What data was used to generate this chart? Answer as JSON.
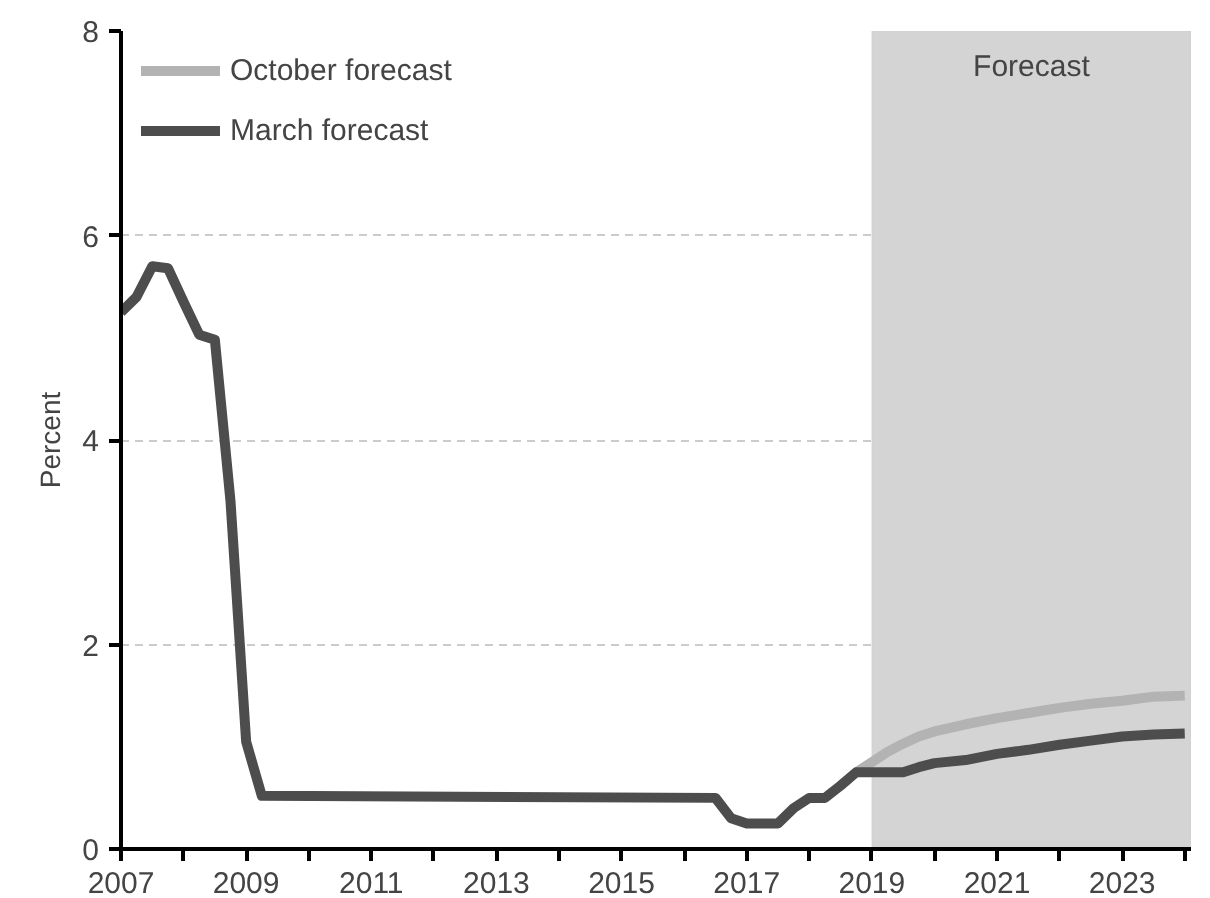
{
  "chart_data": {
    "type": "line",
    "ylabel": "Percent",
    "xlim": [
      2007,
      2024.1
    ],
    "ylim": [
      0,
      8
    ],
    "xticks": [
      2007,
      {
        "value": 2008,
        "label": null
      },
      2009,
      {
        "value": 2010,
        "label": null
      },
      2011,
      {
        "value": 2012,
        "label": null
      },
      2013,
      {
        "value": 2014,
        "label": null
      },
      2015,
      {
        "value": 2016,
        "label": null
      },
      2017,
      {
        "value": 2018,
        "label": null
      },
      2019,
      {
        "value": 2020,
        "label": null
      },
      2021,
      {
        "value": 2022,
        "label": null
      },
      2023,
      {
        "value": 2024,
        "label": null
      }
    ],
    "yticks": [
      0,
      2,
      4,
      6,
      8
    ],
    "grid": "y",
    "legend": "top left",
    "line_style": "solid",
    "marker": "none",
    "bands": [
      {
        "axis": "x",
        "from": 2019,
        "to": 2024.1,
        "label": "Forecast",
        "color": "#d4d4d4"
      }
    ],
    "series": [
      {
        "name": "October forecast",
        "color": "#b3b3b3",
        "x": [
          2018.75,
          2019,
          2019.25,
          2019.5,
          2019.75,
          2020,
          2020.5,
          2021,
          2021.5,
          2022,
          2022.5,
          2023,
          2023.5,
          2024
        ],
        "values": [
          0.75,
          0.85,
          0.95,
          1.03,
          1.1,
          1.15,
          1.22,
          1.28,
          1.33,
          1.38,
          1.42,
          1.45,
          1.49,
          1.5
        ]
      },
      {
        "name": "March forecast",
        "color": "#4d4d4d",
        "x": [
          2007,
          2007.25,
          2007.5,
          2007.75,
          2008,
          2008.25,
          2008.5,
          2008.75,
          2009,
          2009.25,
          2016.5,
          2016.75,
          2017,
          2017.5,
          2017.75,
          2018,
          2018.25,
          2018.5,
          2018.75,
          2019,
          2019.5,
          2019.75,
          2020,
          2020.5,
          2021,
          2021.5,
          2022,
          2022.5,
          2023,
          2023.5,
          2024
        ],
        "values": [
          5.25,
          5.4,
          5.7,
          5.68,
          5.35,
          5.03,
          4.98,
          3.4,
          1.05,
          0.52,
          0.5,
          0.3,
          0.25,
          0.25,
          0.4,
          0.5,
          0.5,
          0.62,
          0.75,
          0.75,
          0.75,
          0.8,
          0.84,
          0.87,
          0.93,
          0.97,
          1.02,
          1.06,
          1.1,
          1.12,
          1.13
        ]
      }
    ]
  }
}
